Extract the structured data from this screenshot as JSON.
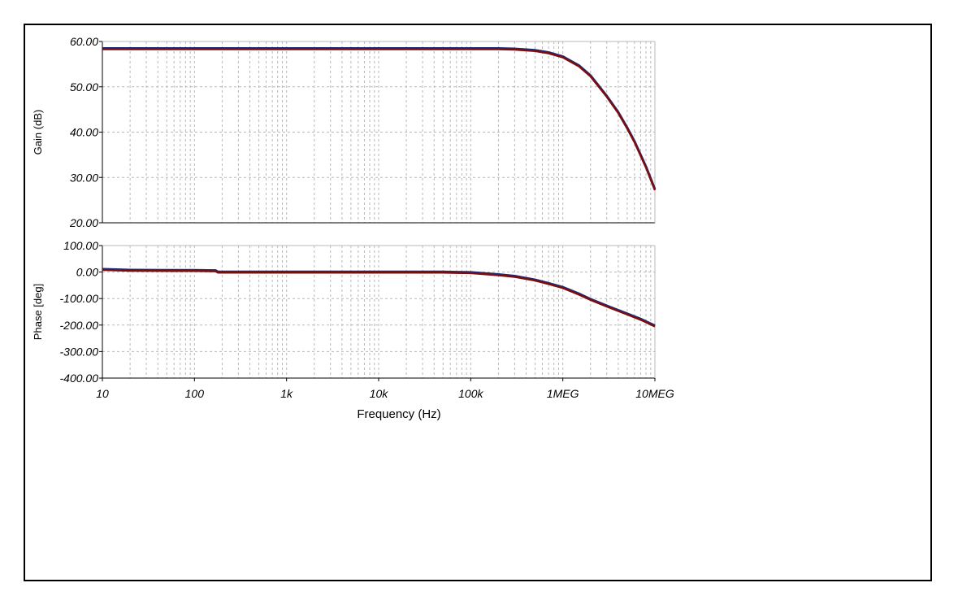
{
  "colors": {
    "trace_primary": "#7a0d0d",
    "trace_secondary": "#1f2a7a",
    "grid": "#b8b8b8",
    "axis": "#000000"
  },
  "chart_data": [
    {
      "type": "line",
      "title": "",
      "xlabel": "",
      "ylabel": "Gain (dB)",
      "xscale": "log",
      "xlim": [
        10,
        10000000
      ],
      "ylim": [
        20,
        60
      ],
      "ytick_labels": [
        "60.00",
        "50.00",
        "40.00",
        "30.00",
        "20.00"
      ],
      "yticks": [
        60,
        50,
        40,
        30,
        20
      ],
      "grid": true,
      "series": [
        {
          "x": [
            10,
            100,
            1000,
            10000,
            100000,
            200000,
            300000,
            500000,
            700000,
            1000000,
            1500000,
            2000000,
            3000000,
            4000000,
            5000000,
            6000000,
            8000000,
            10000000
          ],
          "y": [
            58.3,
            58.3,
            58.3,
            58.3,
            58.3,
            58.3,
            58.2,
            57.9,
            57.4,
            56.5,
            54.5,
            52.3,
            47.8,
            44.2,
            40.8,
            37.8,
            32.2,
            27.2
          ]
        }
      ]
    },
    {
      "type": "line",
      "title": "",
      "xlabel": "Frequency (Hz)",
      "ylabel": "Phase [deg]",
      "xscale": "log",
      "xlim": [
        10,
        10000000
      ],
      "ylim": [
        -400,
        100
      ],
      "ytick_labels": [
        "100.00",
        "0.00",
        "-100.00",
        "-200.00",
        "-300.00",
        "-400.00"
      ],
      "yticks": [
        100,
        0,
        -100,
        -200,
        -300,
        -400
      ],
      "xtick_labels": [
        "10",
        "100",
        "1k",
        "10k",
        "100k",
        "1MEG",
        "10MEG"
      ],
      "xticks": [
        10,
        100,
        1000,
        10000,
        100000,
        1000000,
        10000000
      ],
      "grid": true,
      "series": [
        {
          "x": [
            10,
            20,
            50,
            100,
            170,
            180,
            1000,
            10000,
            50000,
            70000,
            100000,
            200000,
            300000,
            500000,
            700000,
            1000000,
            1500000,
            2000000,
            3000000,
            5000000,
            7000000,
            10000000
          ],
          "y": [
            8,
            5,
            4,
            4,
            3,
            -2,
            -2,
            -2,
            -2,
            -3,
            -4,
            -12,
            -18,
            -32,
            -45,
            -60,
            -85,
            -105,
            -130,
            -160,
            -180,
            -205
          ]
        }
      ]
    }
  ]
}
